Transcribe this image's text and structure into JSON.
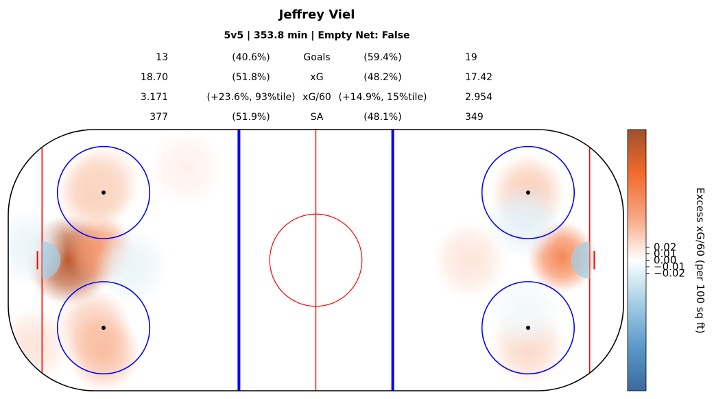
{
  "chart_data": {
    "type": "heatmap",
    "title": "Jeffrey Viel",
    "subtitle": "5v5 | 353.8 min | Empty Net: False",
    "stats_table": {
      "rows": [
        {
          "label": "Goals",
          "left_value": "13",
          "left_pct": "(40.6%)",
          "right_pct": "(59.4%)",
          "right_value": "19"
        },
        {
          "label": "xG",
          "left_value": "18.70",
          "left_pct": "(51.8%)",
          "right_pct": "(48.2%)",
          "right_value": "17.42"
        },
        {
          "label": "xG/60",
          "left_value": "3.171",
          "left_pct": "(+23.6%, 93%tile)",
          "right_pct": "(+14.9%, 15%tile)",
          "right_value": "2.954"
        },
        {
          "label": "SA",
          "left_value": "377",
          "left_pct": "(51.9%)",
          "right_pct": "(48.1%)",
          "right_value": "349"
        }
      ]
    },
    "colorbar": {
      "label": "Excess xG/60 (per 100 sq ft)",
      "ticks": [
        "0.02",
        "0.01",
        "0.00",
        "−0.01",
        "−0.02"
      ],
      "tick_values": [
        0.02,
        0.01,
        0.0,
        -0.01,
        -0.02
      ],
      "range": [
        -0.2,
        0.2
      ],
      "colormap": [
        "#3b6a9c",
        "#5b98c9",
        "#a3cde3",
        "#ffffff",
        "#f7a57f",
        "#f26a2c",
        "#a0502e"
      ]
    },
    "hotspots": [
      {
        "zone": "left net front",
        "x": -80,
        "y": 0,
        "value": 0.18
      },
      {
        "zone": "left slot",
        "x": -70,
        "y": 3,
        "value": 0.08
      },
      {
        "zone": "left high slot top",
        "x": -72,
        "y": 22,
        "value": 0.04
      },
      {
        "zone": "left high slot bottom",
        "x": -72,
        "y": -22,
        "value": 0.04
      },
      {
        "zone": "left faceoff top",
        "x": -69,
        "y": 25,
        "value": 0.03
      },
      {
        "zone": "left faceoff bottom",
        "x": -69,
        "y": -30,
        "value": 0.05
      },
      {
        "zone": "left point top",
        "x": -42,
        "y": 30,
        "value": 0.01
      },
      {
        "zone": "left corner bottom",
        "x": -92,
        "y": -28,
        "value": 0.02
      },
      {
        "zone": "left slot cold",
        "x": -60,
        "y": -2,
        "value": -0.015
      },
      {
        "zone": "left behind net cold",
        "x": -93,
        "y": 4,
        "value": -0.015
      },
      {
        "zone": "right net front",
        "x": 80,
        "y": 1,
        "value": 0.1
      },
      {
        "zone": "right faceoff top",
        "x": 69,
        "y": 22,
        "value": 0.04
      },
      {
        "zone": "right high slot",
        "x": 50,
        "y": 0,
        "value": 0.02
      },
      {
        "zone": "right faceoff bottom",
        "x": 69,
        "y": -28,
        "value": 0.03
      },
      {
        "zone": "right slot cold",
        "x": 68,
        "y": 13,
        "value": -0.02
      },
      {
        "zone": "right low slot cold",
        "x": 68,
        "y": -17,
        "value": -0.01
      }
    ]
  }
}
